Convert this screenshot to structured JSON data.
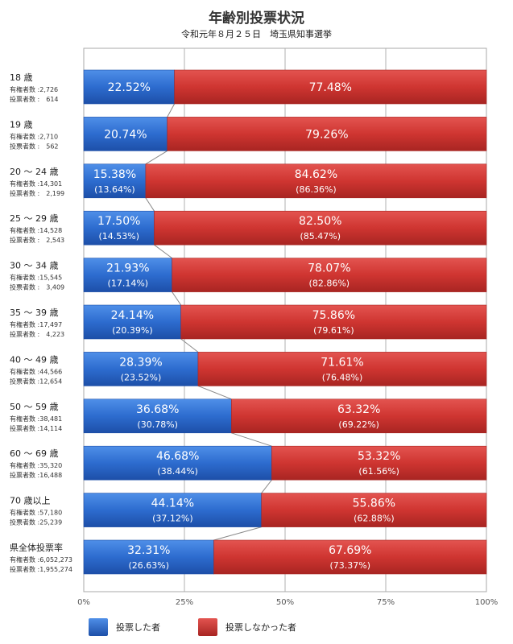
{
  "chart_data": {
    "type": "bar",
    "stacked": true,
    "orientation": "horizontal",
    "title": "年齢別投票状況",
    "subtitle": "令和元年８月２５日　埼玉県知事選挙",
    "xlim": [
      0,
      100
    ],
    "grid": true,
    "x_ticks": [
      "0%",
      "25%",
      "50%",
      "75%",
      "100%"
    ],
    "series": [
      {
        "name": "投票した者",
        "color": "#2f6fd0"
      },
      {
        "name": "投票しなかった者",
        "color": "#d33a36"
      }
    ],
    "categories": [
      {
        "label": "18 歳",
        "info1": "有権者数 :2,726",
        "info2": "投票者数 :　614",
        "voted": 22.52,
        "voted_label": "22.52%",
        "voted_prev": "",
        "not": 77.48,
        "not_label": "77.48%",
        "not_prev": ""
      },
      {
        "label": "19 歳",
        "info1": "有権者数 :2,710",
        "info2": "投票者数 :　562",
        "voted": 20.74,
        "voted_label": "20.74%",
        "voted_prev": "",
        "not": 79.26,
        "not_label": "79.26%",
        "not_prev": ""
      },
      {
        "label": "20 ～ 24 歳",
        "info1": "有権者数 :14,301",
        "info2": "投票者数 :　2,199",
        "voted": 15.38,
        "voted_label": "15.38%",
        "voted_prev": "(13.64%)",
        "not": 84.62,
        "not_label": "84.62%",
        "not_prev": "(86.36%)"
      },
      {
        "label": "25 ～ 29 歳",
        "info1": "有権者数 :14,528",
        "info2": "投票者数 :　2,543",
        "voted": 17.5,
        "voted_label": "17.50%",
        "voted_prev": "(14.53%)",
        "not": 82.5,
        "not_label": "82.50%",
        "not_prev": "(85.47%)"
      },
      {
        "label": "30 ～ 34 歳",
        "info1": "有権者数 :15,545",
        "info2": "投票者数 :　3,409",
        "voted": 21.93,
        "voted_label": "21.93%",
        "voted_prev": "(17.14%)",
        "not": 78.07,
        "not_label": "78.07%",
        "not_prev": "(82.86%)"
      },
      {
        "label": "35 ～ 39 歳",
        "info1": "有権者数 :17,497",
        "info2": "投票者数 :　4,223",
        "voted": 24.14,
        "voted_label": "24.14%",
        "voted_prev": "(20.39%)",
        "not": 75.86,
        "not_label": "75.86%",
        "not_prev": "(79.61%)"
      },
      {
        "label": "40 ～ 49 歳",
        "info1": "有権者数 :44,566",
        "info2": "投票者数 :12,654",
        "voted": 28.39,
        "voted_label": "28.39%",
        "voted_prev": "(23.52%)",
        "not": 71.61,
        "not_label": "71.61%",
        "not_prev": "(76.48%)"
      },
      {
        "label": "50 ～ 59 歳",
        "info1": "有権者数 :38,481",
        "info2": "投票者数 :14,114",
        "voted": 36.68,
        "voted_label": "36.68%",
        "voted_prev": "(30.78%)",
        "not": 63.32,
        "not_label": "63.32%",
        "not_prev": "(69.22%)"
      },
      {
        "label": "60 ～ 69 歳",
        "info1": "有権者数 :35,320",
        "info2": "投票者数 :16,488",
        "voted": 46.68,
        "voted_label": "46.68%",
        "voted_prev": "(38.44%)",
        "not": 53.32,
        "not_label": "53.32%",
        "not_prev": "(61.56%)"
      },
      {
        "label": "70 歳以上",
        "info1": "有権者数 :57,180",
        "info2": "投票者数 :25,239",
        "voted": 44.14,
        "voted_label": "44.14%",
        "voted_prev": "(37.12%)",
        "not": 55.86,
        "not_label": "55.86%",
        "not_prev": "(62.88%)"
      },
      {
        "label": "県全体投票率",
        "info1": "有権者数 :6,052,273",
        "info2": "投票者数 :1,955,274",
        "voted": 32.31,
        "voted_label": "32.31%",
        "voted_prev": "(26.63%)",
        "not": 67.69,
        "not_label": "67.69%",
        "not_prev": "(73.37%)"
      }
    ]
  }
}
